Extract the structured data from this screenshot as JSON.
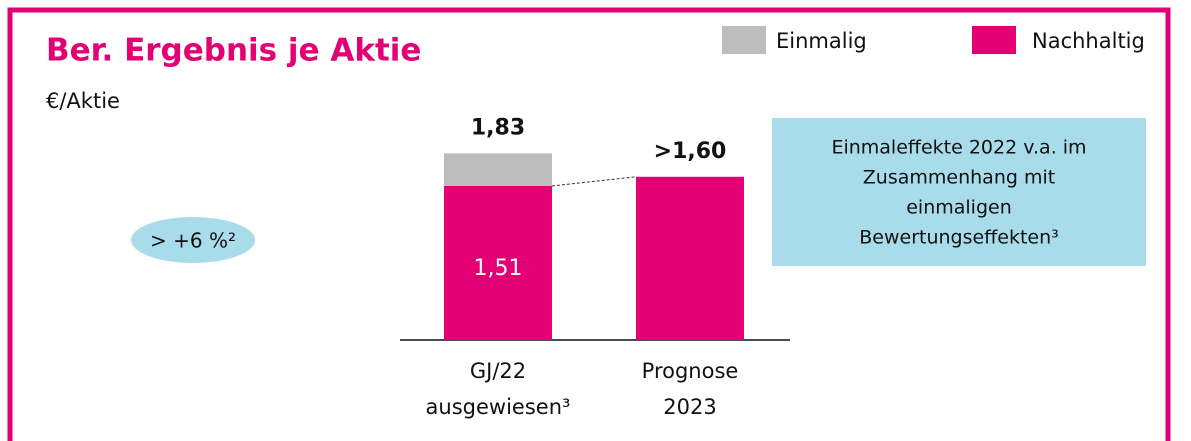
{
  "chart_data": {
    "type": "stacked_bar",
    "title": "Ber. Ergebnis je Aktie",
    "subtitle": "€/Aktie",
    "categories": [
      [
        "GJ/22",
        "ausgewiesen³"
      ],
      [
        "Prognose",
        "2023"
      ]
    ],
    "series": [
      {
        "name": "Nachhaltig",
        "color": "#e20074",
        "values": [
          1.51,
          1.6
        ],
        "value_labels": [
          "1,51",
          null
        ]
      },
      {
        "name": "Einmalig",
        "color": "#bdbdbd",
        "values": [
          0.32,
          null
        ]
      }
    ],
    "totals": [
      1.83,
      1.6
    ],
    "total_labels": [
      "1,83",
      ">1,60"
    ],
    "ylim": [
      0,
      2
    ],
    "legend": "top-right",
    "badge": "> +6 %²",
    "annotation": [
      "Einmaleffekte 2022 v.a. im",
      "Zusammenhang mit",
      "einmaligen",
      "Bewertungseffekten³"
    ]
  }
}
